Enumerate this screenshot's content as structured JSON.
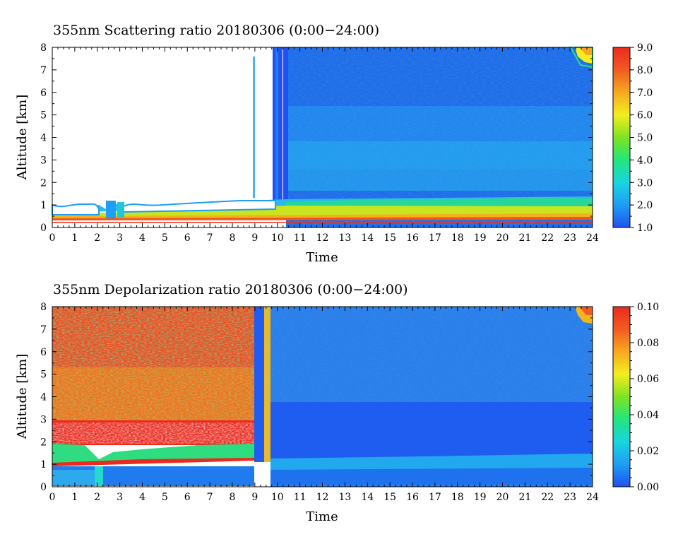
{
  "chart_data": [
    {
      "type": "heatmap",
      "title": "355nm Scattering ratio  20180306 (0:00−24:00)",
      "xlabel": "Time",
      "ylabel": "Altitude [km]",
      "xlim": [
        0,
        24
      ],
      "ylim": [
        0,
        8
      ],
      "x_ticks": [
        "0",
        "1",
        "2",
        "3",
        "4",
        "5",
        "6",
        "7",
        "8",
        "9",
        "10",
        "11",
        "12",
        "13",
        "14",
        "15",
        "16",
        "17",
        "18",
        "19",
        "20",
        "21",
        "22",
        "23",
        "24"
      ],
      "y_ticks": [
        "0",
        "1",
        "2",
        "3",
        "4",
        "5",
        "6",
        "7",
        "8"
      ],
      "colorbar": {
        "range": [
          1.0,
          9.0
        ],
        "labels": [
          "1.0",
          "2.0",
          "3.0",
          "4.0",
          "5.0",
          "6.0",
          "7.0",
          "8.0",
          "9.0"
        ],
        "colors": [
          "#1f52f0",
          "#1e9ef5",
          "#18d5e0",
          "#21e67d",
          "#7fe320",
          "#f4ee1e",
          "#f8a81f",
          "#f25b20",
          "#ea2a1f"
        ]
      },
      "regions": [
        {
          "t0": 0.0,
          "t1": 9.8,
          "z0": 0.0,
          "z1": 8.0,
          "value": null,
          "note": "no data"
        },
        {
          "t0": 9.8,
          "t1": 24.0,
          "z0": 1.2,
          "z1": 8.0,
          "value": 1.8
        },
        {
          "t0": 9.8,
          "t1": 24.0,
          "z0": 3.0,
          "z1": 5.5,
          "value": 2.2
        },
        {
          "t0": 9.8,
          "t1": 24.0,
          "z0": 0.9,
          "z1": 1.2,
          "value": 3.5
        },
        {
          "t0": 8.0,
          "t1": 24.0,
          "z0": 0.55,
          "z1": 0.9,
          "value": 5.0
        },
        {
          "t0": 0.0,
          "t1": 24.0,
          "z0": 0.3,
          "z1": 0.55,
          "value": 8.0
        },
        {
          "t0": 23.3,
          "t1": 24.0,
          "z0": 7.3,
          "z1": 8.0,
          "value": 5.5
        }
      ]
    },
    {
      "type": "heatmap",
      "title": "355nm Depolarization ratio  20180306 (0:00−24:00)",
      "xlabel": "Time",
      "ylabel": "Altitude [km]",
      "xlim": [
        0,
        24
      ],
      "ylim": [
        0,
        8
      ],
      "x_ticks": [
        "0",
        "1",
        "2",
        "3",
        "4",
        "5",
        "6",
        "7",
        "8",
        "9",
        "10",
        "11",
        "12",
        "13",
        "14",
        "15",
        "16",
        "17",
        "18",
        "19",
        "20",
        "21",
        "22",
        "23",
        "24"
      ],
      "y_ticks": [
        "0",
        "1",
        "2",
        "3",
        "4",
        "5",
        "6",
        "7",
        "8"
      ],
      "colorbar": {
        "range": [
          0.0,
          0.1
        ],
        "labels": [
          "0.00",
          "0.02",
          "0.04",
          "0.06",
          "0.08",
          "0.10"
        ],
        "colors": [
          "#1f52f0",
          "#1e9ef5",
          "#18d5e0",
          "#21e67d",
          "#7fe320",
          "#f4ee1e",
          "#f8a81f",
          "#f25b20",
          "#ea2a1f"
        ]
      },
      "regions": [
        {
          "t0": 0.0,
          "t1": 9.0,
          "z0": 3.0,
          "z1": 8.0,
          "value": 0.08
        },
        {
          "t0": 0.0,
          "t1": 9.0,
          "z0": 1.8,
          "z1": 3.0,
          "value": 0.09
        },
        {
          "t0": 0.0,
          "t1": 9.0,
          "z0": 1.1,
          "z1": 1.8,
          "value": 0.04
        },
        {
          "t0": 9.6,
          "t1": 24.0,
          "z0": 3.6,
          "z1": 8.0,
          "value": 0.015
        },
        {
          "t0": 9.6,
          "t1": 24.0,
          "z0": 1.2,
          "z1": 3.6,
          "value": 0.005
        },
        {
          "t0": 0.0,
          "t1": 24.0,
          "z0": 0.0,
          "z1": 1.2,
          "value": 0.012
        },
        {
          "t0": 23.3,
          "t1": 24.0,
          "z0": 7.3,
          "z1": 8.0,
          "value": 0.07
        }
      ]
    }
  ]
}
